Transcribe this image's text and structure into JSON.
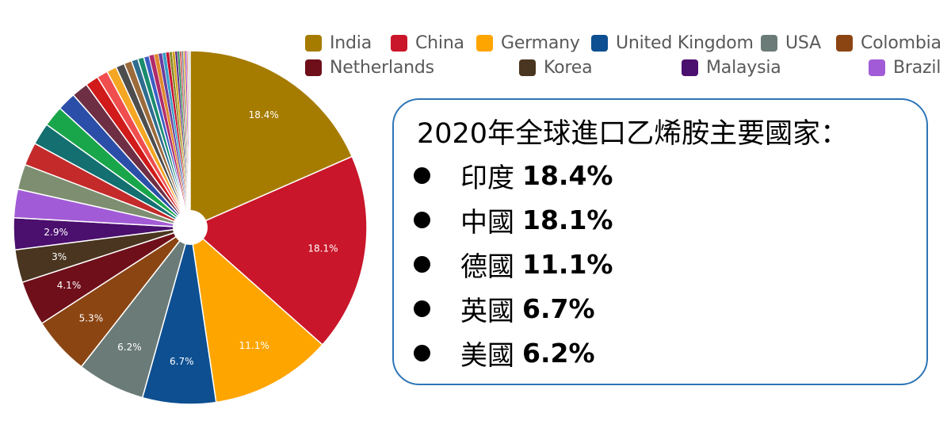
{
  "chart_data": {
    "type": "pie",
    "inner_hole": true,
    "slices": [
      {
        "name": "India",
        "value": 18.4,
        "label": "18.4%",
        "color": "#a67c00"
      },
      {
        "name": "China",
        "value": 18.1,
        "label": "18.1%",
        "color": "#c9162a"
      },
      {
        "name": "Germany",
        "value": 11.1,
        "label": "11.1%",
        "color": "#ffa500"
      },
      {
        "name": "United Kingdom",
        "value": 6.7,
        "label": "6.7%",
        "color": "#0d4f91"
      },
      {
        "name": "USA",
        "value": 6.2,
        "label": "6.2%",
        "color": "#6b7b78"
      },
      {
        "name": "Colombia",
        "value": 5.3,
        "label": "5.3%",
        "color": "#8b4513"
      },
      {
        "name": "Netherlands",
        "value": 4.1,
        "label": "4.1%",
        "color": "#6e0f1a"
      },
      {
        "name": "Korea",
        "value": 3.0,
        "label": "3%",
        "color": "#4a3520"
      },
      {
        "name": "Malaysia",
        "value": 2.9,
        "label": "2.9%",
        "color": "#4b0f6e"
      },
      {
        "name": "Brazil",
        "value": 2.6,
        "label": "",
        "color": "#a25bd6"
      },
      {
        "name": "",
        "value": 2.3,
        "label": "",
        "color": "#7d8f70"
      },
      {
        "name": "",
        "value": 2.1,
        "label": "",
        "color": "#c42a2a"
      },
      {
        "name": "",
        "value": 2.0,
        "label": "",
        "color": "#136f70"
      },
      {
        "name": "",
        "value": 1.9,
        "label": "",
        "color": "#19a64a"
      },
      {
        "name": "",
        "value": 1.7,
        "label": "",
        "color": "#2b4fa8"
      },
      {
        "name": "",
        "value": 1.5,
        "label": "",
        "color": "#6e2e44"
      },
      {
        "name": "",
        "value": 1.2,
        "label": "",
        "color": "#d11a1a"
      },
      {
        "name": "",
        "value": 1.0,
        "label": "",
        "color": "#f04e4e"
      },
      {
        "name": "",
        "value": 0.9,
        "label": "",
        "color": "#f5a623"
      },
      {
        "name": "",
        "value": 0.8,
        "label": "",
        "color": "#4d4d4d"
      },
      {
        "name": "",
        "value": 0.7,
        "label": "",
        "color": "#9c6b3c"
      },
      {
        "name": "",
        "value": 0.6,
        "label": "",
        "color": "#2f6d8f"
      },
      {
        "name": "",
        "value": 0.55,
        "label": "",
        "color": "#1a8c6e"
      },
      {
        "name": "",
        "value": 0.5,
        "label": "",
        "color": "#3c5ec4"
      },
      {
        "name": "",
        "value": 0.45,
        "label": "",
        "color": "#b02a6a"
      },
      {
        "name": "",
        "value": 0.4,
        "label": "",
        "color": "#e08a2e"
      },
      {
        "name": "",
        "value": 0.36,
        "label": "",
        "color": "#6a3fa0"
      },
      {
        "name": "",
        "value": 0.33,
        "label": "",
        "color": "#3aa0c8"
      },
      {
        "name": "",
        "value": 0.3,
        "label": "",
        "color": "#c8102e"
      },
      {
        "name": "",
        "value": 0.27,
        "label": "",
        "color": "#8a8a2a"
      },
      {
        "name": "",
        "value": 0.25,
        "label": "",
        "color": "#d4a017"
      },
      {
        "name": "",
        "value": 0.22,
        "label": "",
        "color": "#5a2d82"
      },
      {
        "name": "",
        "value": 0.2,
        "label": "",
        "color": "#2e8b57"
      },
      {
        "name": "",
        "value": 0.18,
        "label": "",
        "color": "#cd5c5c"
      },
      {
        "name": "",
        "value": 0.16,
        "label": "",
        "color": "#708090"
      },
      {
        "name": "",
        "value": 0.15,
        "label": "",
        "color": "#daa520"
      },
      {
        "name": "",
        "value": 0.14,
        "label": "",
        "color": "#9932cc"
      },
      {
        "name": "",
        "value": 0.12,
        "label": "",
        "color": "#e9967a"
      },
      {
        "name": "",
        "value": 0.11,
        "label": "",
        "color": "#bfbfbf"
      },
      {
        "name": "",
        "value": 0.1,
        "label": "",
        "color": "#d9d9d9"
      }
    ]
  },
  "legend": {
    "items": [
      {
        "name": "India",
        "color": "#a67c00"
      },
      {
        "name": "China",
        "color": "#c9162a"
      },
      {
        "name": "Germany",
        "color": "#ffa500"
      },
      {
        "name": "United Kingdom",
        "color": "#0d4f91"
      },
      {
        "name": "USA",
        "color": "#6b7b78"
      },
      {
        "name": "Colombia",
        "color": "#8b4513"
      },
      {
        "name": "Netherlands",
        "color": "#6e0f1a"
      },
      {
        "name": "Korea",
        "color": "#4a3520"
      },
      {
        "name": "Malaysia",
        "color": "#4b0f6e"
      },
      {
        "name": "Brazil",
        "color": "#a25bd6"
      }
    ]
  },
  "info_box": {
    "title": "2020年全球進口乙烯胺主要國家：",
    "items": [
      {
        "country": "印度",
        "value": "18.4%"
      },
      {
        "country": "中國",
        "value": "18.1%"
      },
      {
        "country": "德國",
        "value": "11.1%"
      },
      {
        "country": "英國",
        "value": "6.7%"
      },
      {
        "country": "美國",
        "value": "6.2%"
      }
    ]
  }
}
